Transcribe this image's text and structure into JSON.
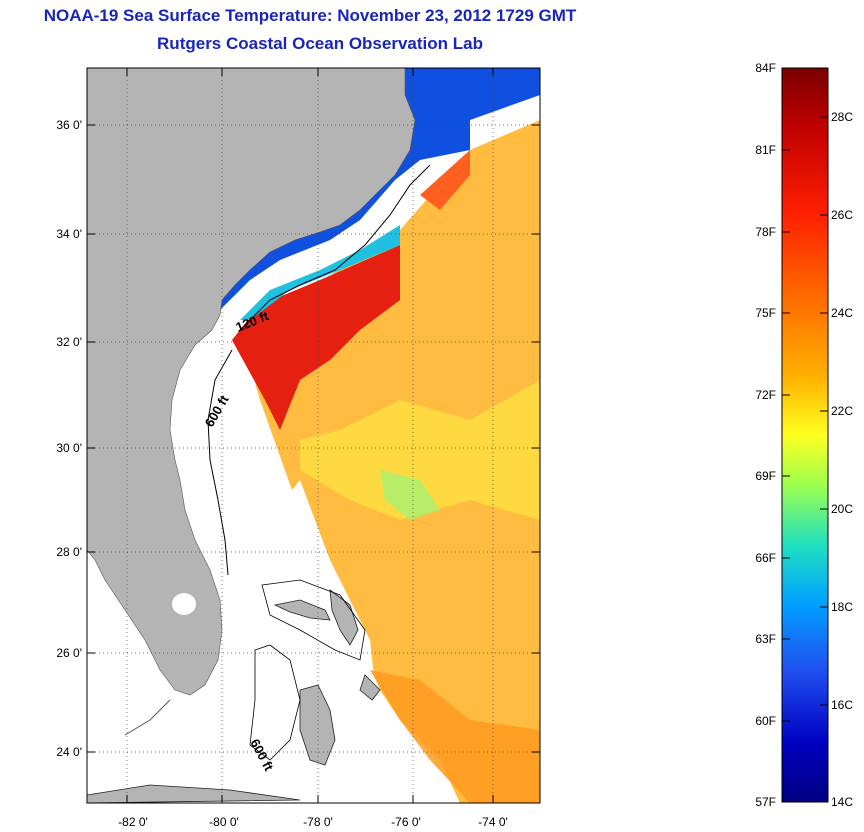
{
  "title": {
    "line1": "NOAA-19 Sea Surface Temperature:  November 23, 2012 1729 GMT",
    "line2": "Rutgers Coastal Ocean Observation Lab"
  },
  "map": {
    "lat_ticks": [
      "36 0'",
      "34 0'",
      "32 0'",
      "30 0'",
      "28 0'",
      "26 0'",
      "24 0'"
    ],
    "lon_ticks": [
      "-82 0'",
      "-80 0'",
      "-78 0'",
      "-76 0'",
      "-74 0'"
    ],
    "contour_labels": [
      "120 ft",
      "600 ft",
      "600 ft"
    ],
    "land_color": "#b4b4b4"
  },
  "colorbar": {
    "fahrenheit_labels": [
      "84F",
      "81F",
      "78F",
      "75F",
      "72F",
      "69F",
      "66F",
      "63F",
      "60F",
      "57F"
    ],
    "celsius_labels": [
      "28C",
      "26C",
      "24C",
      "22C",
      "20C",
      "18C",
      "16C",
      "14C"
    ],
    "colors_top_to_bottom": [
      "#7a0000",
      "#c00000",
      "#ff2000",
      "#ff7000",
      "#ffb000",
      "#ffff20",
      "#9aff50",
      "#20e0c0",
      "#00a0ff",
      "#2050f0",
      "#0000c0",
      "#000080"
    ]
  }
}
